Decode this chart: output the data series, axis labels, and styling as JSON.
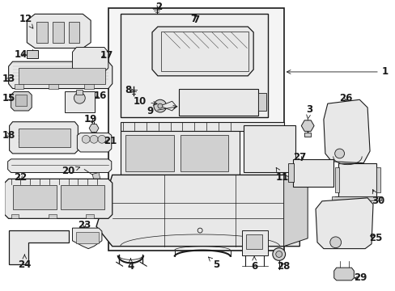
{
  "bg_color": "#ffffff",
  "lc": "#1a1a1a",
  "tc": "#1a1a1a",
  "fs": 8.5,
  "fig_w": 4.89,
  "fig_h": 3.6,
  "dpi": 100,
  "gray1": "#e8e8e8",
  "gray2": "#d0d0d0",
  "gray3": "#c0c0c0",
  "inset_bg": "#efefef",
  "main_bg": "#f5f5f5"
}
